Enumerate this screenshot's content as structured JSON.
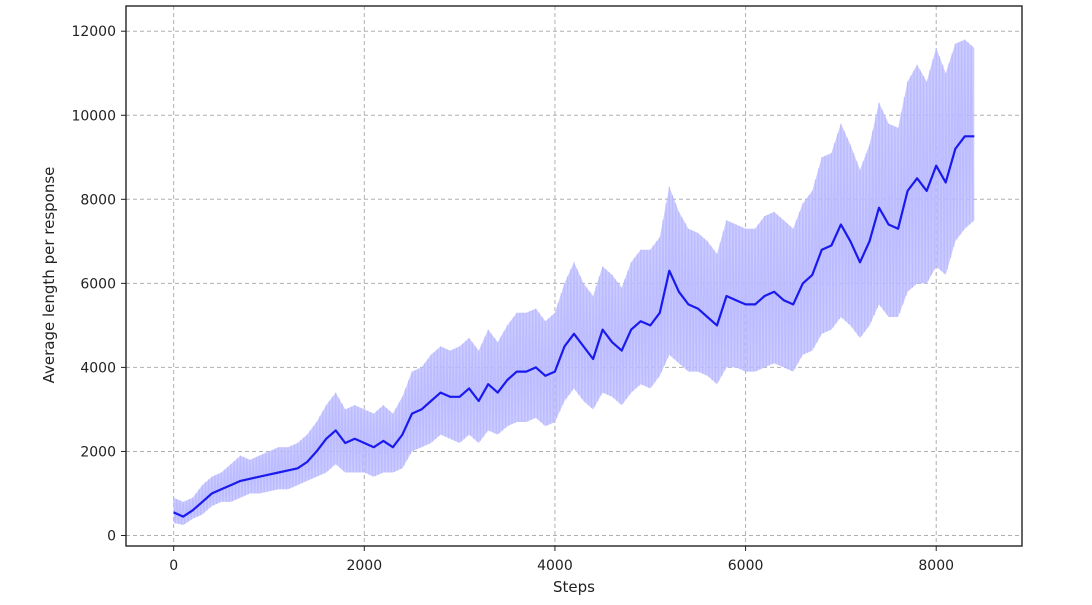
{
  "chart_data": {
    "type": "line",
    "title": "",
    "xlabel": "Steps",
    "ylabel": "Average length per response",
    "xlim": [
      -500,
      8900
    ],
    "ylim": [
      -250,
      12600
    ],
    "xticks": [
      0,
      2000,
      4000,
      6000,
      8000
    ],
    "xtick_labels": [
      "0",
      "2000",
      "4000",
      "6000",
      "8000"
    ],
    "yticks": [
      0,
      2000,
      4000,
      6000,
      8000,
      10000,
      12000
    ],
    "ytick_labels": [
      "0",
      "2000",
      "4000",
      "6000",
      "8000",
      "10000",
      "12000"
    ],
    "grid": true,
    "colors": {
      "smoothed": "#1a1aee",
      "raw": "#b9b9ff",
      "grid": "#b0b0b0"
    },
    "series": [
      {
        "style": "smoothed",
        "x": [
          0,
          100,
          200,
          300,
          400,
          500,
          600,
          700,
          800,
          900,
          1000,
          1100,
          1200,
          1300,
          1400,
          1500,
          1600,
          1700,
          1800,
          1900,
          2000,
          2100,
          2200,
          2300,
          2400,
          2500,
          2600,
          2700,
          2800,
          2900,
          3000,
          3100,
          3200,
          3300,
          3400,
          3500,
          3600,
          3700,
          3800,
          3900,
          4000,
          4100,
          4200,
          4300,
          4400,
          4500,
          4600,
          4700,
          4800,
          4900,
          5000,
          5100,
          5200,
          5300,
          5400,
          5500,
          5600,
          5700,
          5800,
          5900,
          6000,
          6100,
          6200,
          6300,
          6400,
          6500,
          6600,
          6700,
          6800,
          6900,
          7000,
          7100,
          7200,
          7300,
          7400,
          7500,
          7600,
          7700,
          7800,
          7900,
          8000,
          8100,
          8200,
          8300,
          8400
        ],
        "y": [
          550,
          450,
          600,
          800,
          1000,
          1100,
          1200,
          1300,
          1350,
          1400,
          1450,
          1500,
          1550,
          1600,
          1750,
          2000,
          2300,
          2500,
          2200,
          2300,
          2200,
          2100,
          2250,
          2100,
          2400,
          2900,
          3000,
          3200,
          3400,
          3300,
          3300,
          3500,
          3200,
          3600,
          3400,
          3700,
          3900,
          3900,
          4000,
          3800,
          3900,
          4500,
          4800,
          4500,
          4200,
          4900,
          4600,
          4400,
          4900,
          5100,
          5000,
          5300,
          6300,
          5800,
          5500,
          5400,
          5200,
          5000,
          5700,
          5600,
          5500,
          5500,
          5700,
          5800,
          5600,
          5500,
          6000,
          6200,
          6800,
          6900,
          7400,
          7000,
          6500,
          7000,
          7800,
          7400,
          7300,
          8200,
          8500,
          8200,
          8800,
          8400,
          9200,
          9500,
          9500
        ]
      },
      {
        "style": "raw",
        "x": [
          0,
          100,
          200,
          300,
          400,
          500,
          600,
          700,
          800,
          900,
          1000,
          1100,
          1200,
          1300,
          1400,
          1500,
          1600,
          1700,
          1800,
          1900,
          2000,
          2100,
          2200,
          2300,
          2400,
          2500,
          2600,
          2700,
          2800,
          2900,
          3000,
          3100,
          3200,
          3300,
          3400,
          3500,
          3600,
          3700,
          3800,
          3900,
          4000,
          4100,
          4200,
          4300,
          4400,
          4500,
          4600,
          4700,
          4800,
          4900,
          5000,
          5100,
          5200,
          5300,
          5400,
          5500,
          5600,
          5700,
          5800,
          5900,
          6000,
          6100,
          6200,
          6300,
          6400,
          6500,
          6600,
          6700,
          6800,
          6900,
          7000,
          7100,
          7200,
          7300,
          7400,
          7500,
          7600,
          7700,
          7800,
          7900,
          8000,
          8100,
          8200,
          8300,
          8400
        ],
        "y_low": [
          300,
          250,
          400,
          500,
          700,
          800,
          800,
          900,
          1000,
          1000,
          1050,
          1100,
          1100,
          1200,
          1300,
          1400,
          1500,
          1700,
          1500,
          1500,
          1500,
          1400,
          1500,
          1500,
          1600,
          2000,
          2100,
          2200,
          2400,
          2300,
          2200,
          2400,
          2200,
          2500,
          2400,
          2600,
          2700,
          2700,
          2800,
          2600,
          2700,
          3200,
          3500,
          3200,
          3000,
          3400,
          3300,
          3100,
          3400,
          3600,
          3500,
          3800,
          4300,
          4100,
          3900,
          3900,
          3800,
          3600,
          4000,
          4000,
          3900,
          3900,
          4000,
          4100,
          4000,
          3900,
          4300,
          4400,
          4800,
          4900,
          5200,
          5000,
          4700,
          5000,
          5500,
          5200,
          5200,
          5800,
          6000,
          6000,
          6400,
          6200,
          7000,
          7300,
          7500
        ],
        "y_high": [
          900,
          800,
          900,
          1200,
          1400,
          1500,
          1700,
          1900,
          1800,
          1900,
          2000,
          2100,
          2100,
          2200,
          2400,
          2700,
          3100,
          3400,
          3000,
          3100,
          3000,
          2900,
          3100,
          2900,
          3300,
          3900,
          4000,
          4300,
          4500,
          4400,
          4500,
          4700,
          4400,
          4900,
          4600,
          5000,
          5300,
          5300,
          5400,
          5100,
          5300,
          6000,
          6500,
          6000,
          5700,
          6400,
          6200,
          5900,
          6500,
          6800,
          6800,
          7100,
          8300,
          7700,
          7300,
          7200,
          7000,
          6700,
          7500,
          7400,
          7300,
          7300,
          7600,
          7700,
          7500,
          7300,
          7900,
          8200,
          9000,
          9100,
          9800,
          9300,
          8700,
          9300,
          10300,
          9800,
          9700,
          10800,
          11200,
          10800,
          11600,
          11000,
          11700,
          11800,
          11600
        ]
      }
    ]
  }
}
